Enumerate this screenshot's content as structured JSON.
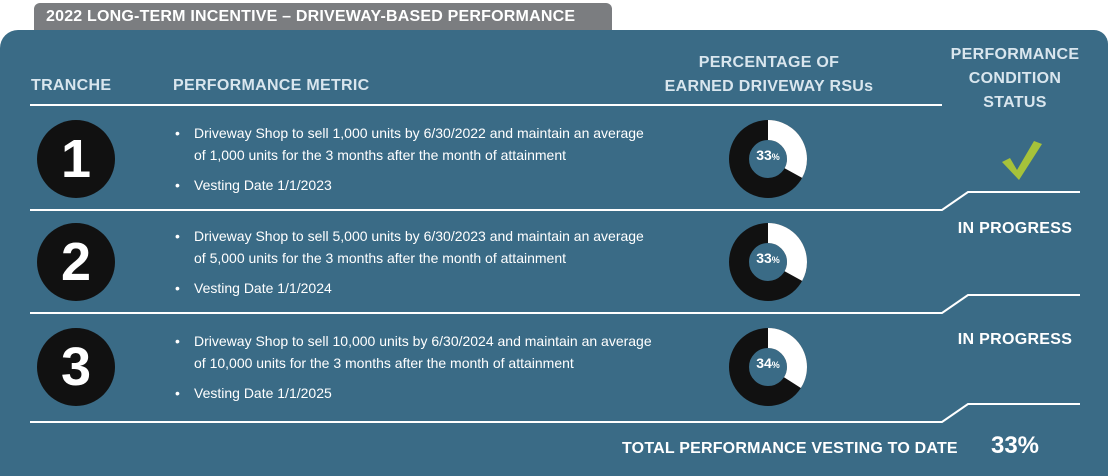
{
  "title": "2022 LONG-TERM INCENTIVE – DRIVEWAY-BASED PERFORMANCE",
  "headers": {
    "tranche": "TRANCHE",
    "metric": "PERFORMANCE METRIC",
    "percentage": "PERCENTAGE OF EARNED DRIVEWAY RSUs",
    "status": "PERFORMANCE CONDITION STATUS"
  },
  "tranches": [
    {
      "number": "1",
      "metric_line": "Driveway Shop to sell 1,000 units by 6/30/2022 and maintain an average of 1,000 units for the 3 months after the month of attainment",
      "vesting": "Vesting Date 1/1/2023",
      "percent_value": "33",
      "percent_symbol": "%",
      "percent": 33,
      "status": "",
      "status_icon": "check-icon"
    },
    {
      "number": "2",
      "metric_line": "Driveway Shop to sell 5,000 units by 6/30/2023 and maintain an average of 5,000 units for the 3 months after the month of attainment",
      "vesting": "Vesting Date 1/1/2024",
      "percent_value": "33",
      "percent_symbol": "%",
      "percent": 33,
      "status": "IN PROGRESS"
    },
    {
      "number": "3",
      "metric_line": "Driveway Shop to sell 10,000 units by 6/30/2024 and maintain an average of 10,000 units for the 3 months after the month of attainment",
      "vesting": "Vesting Date 1/1/2025",
      "percent_value": "34",
      "percent_symbol": "%",
      "percent": 34,
      "status": "IN PROGRESS"
    }
  ],
  "total": {
    "label": "TOTAL PERFORMANCE VESTING TO DATE",
    "value": "33%"
  },
  "colors": {
    "panel": "#3a6b86",
    "title_tab": "#7b7d80",
    "circle": "#111111",
    "donut_track": "#111111",
    "donut_earned": "#ffffff",
    "check": "#a6c23a",
    "rule": "#ffffff"
  }
}
